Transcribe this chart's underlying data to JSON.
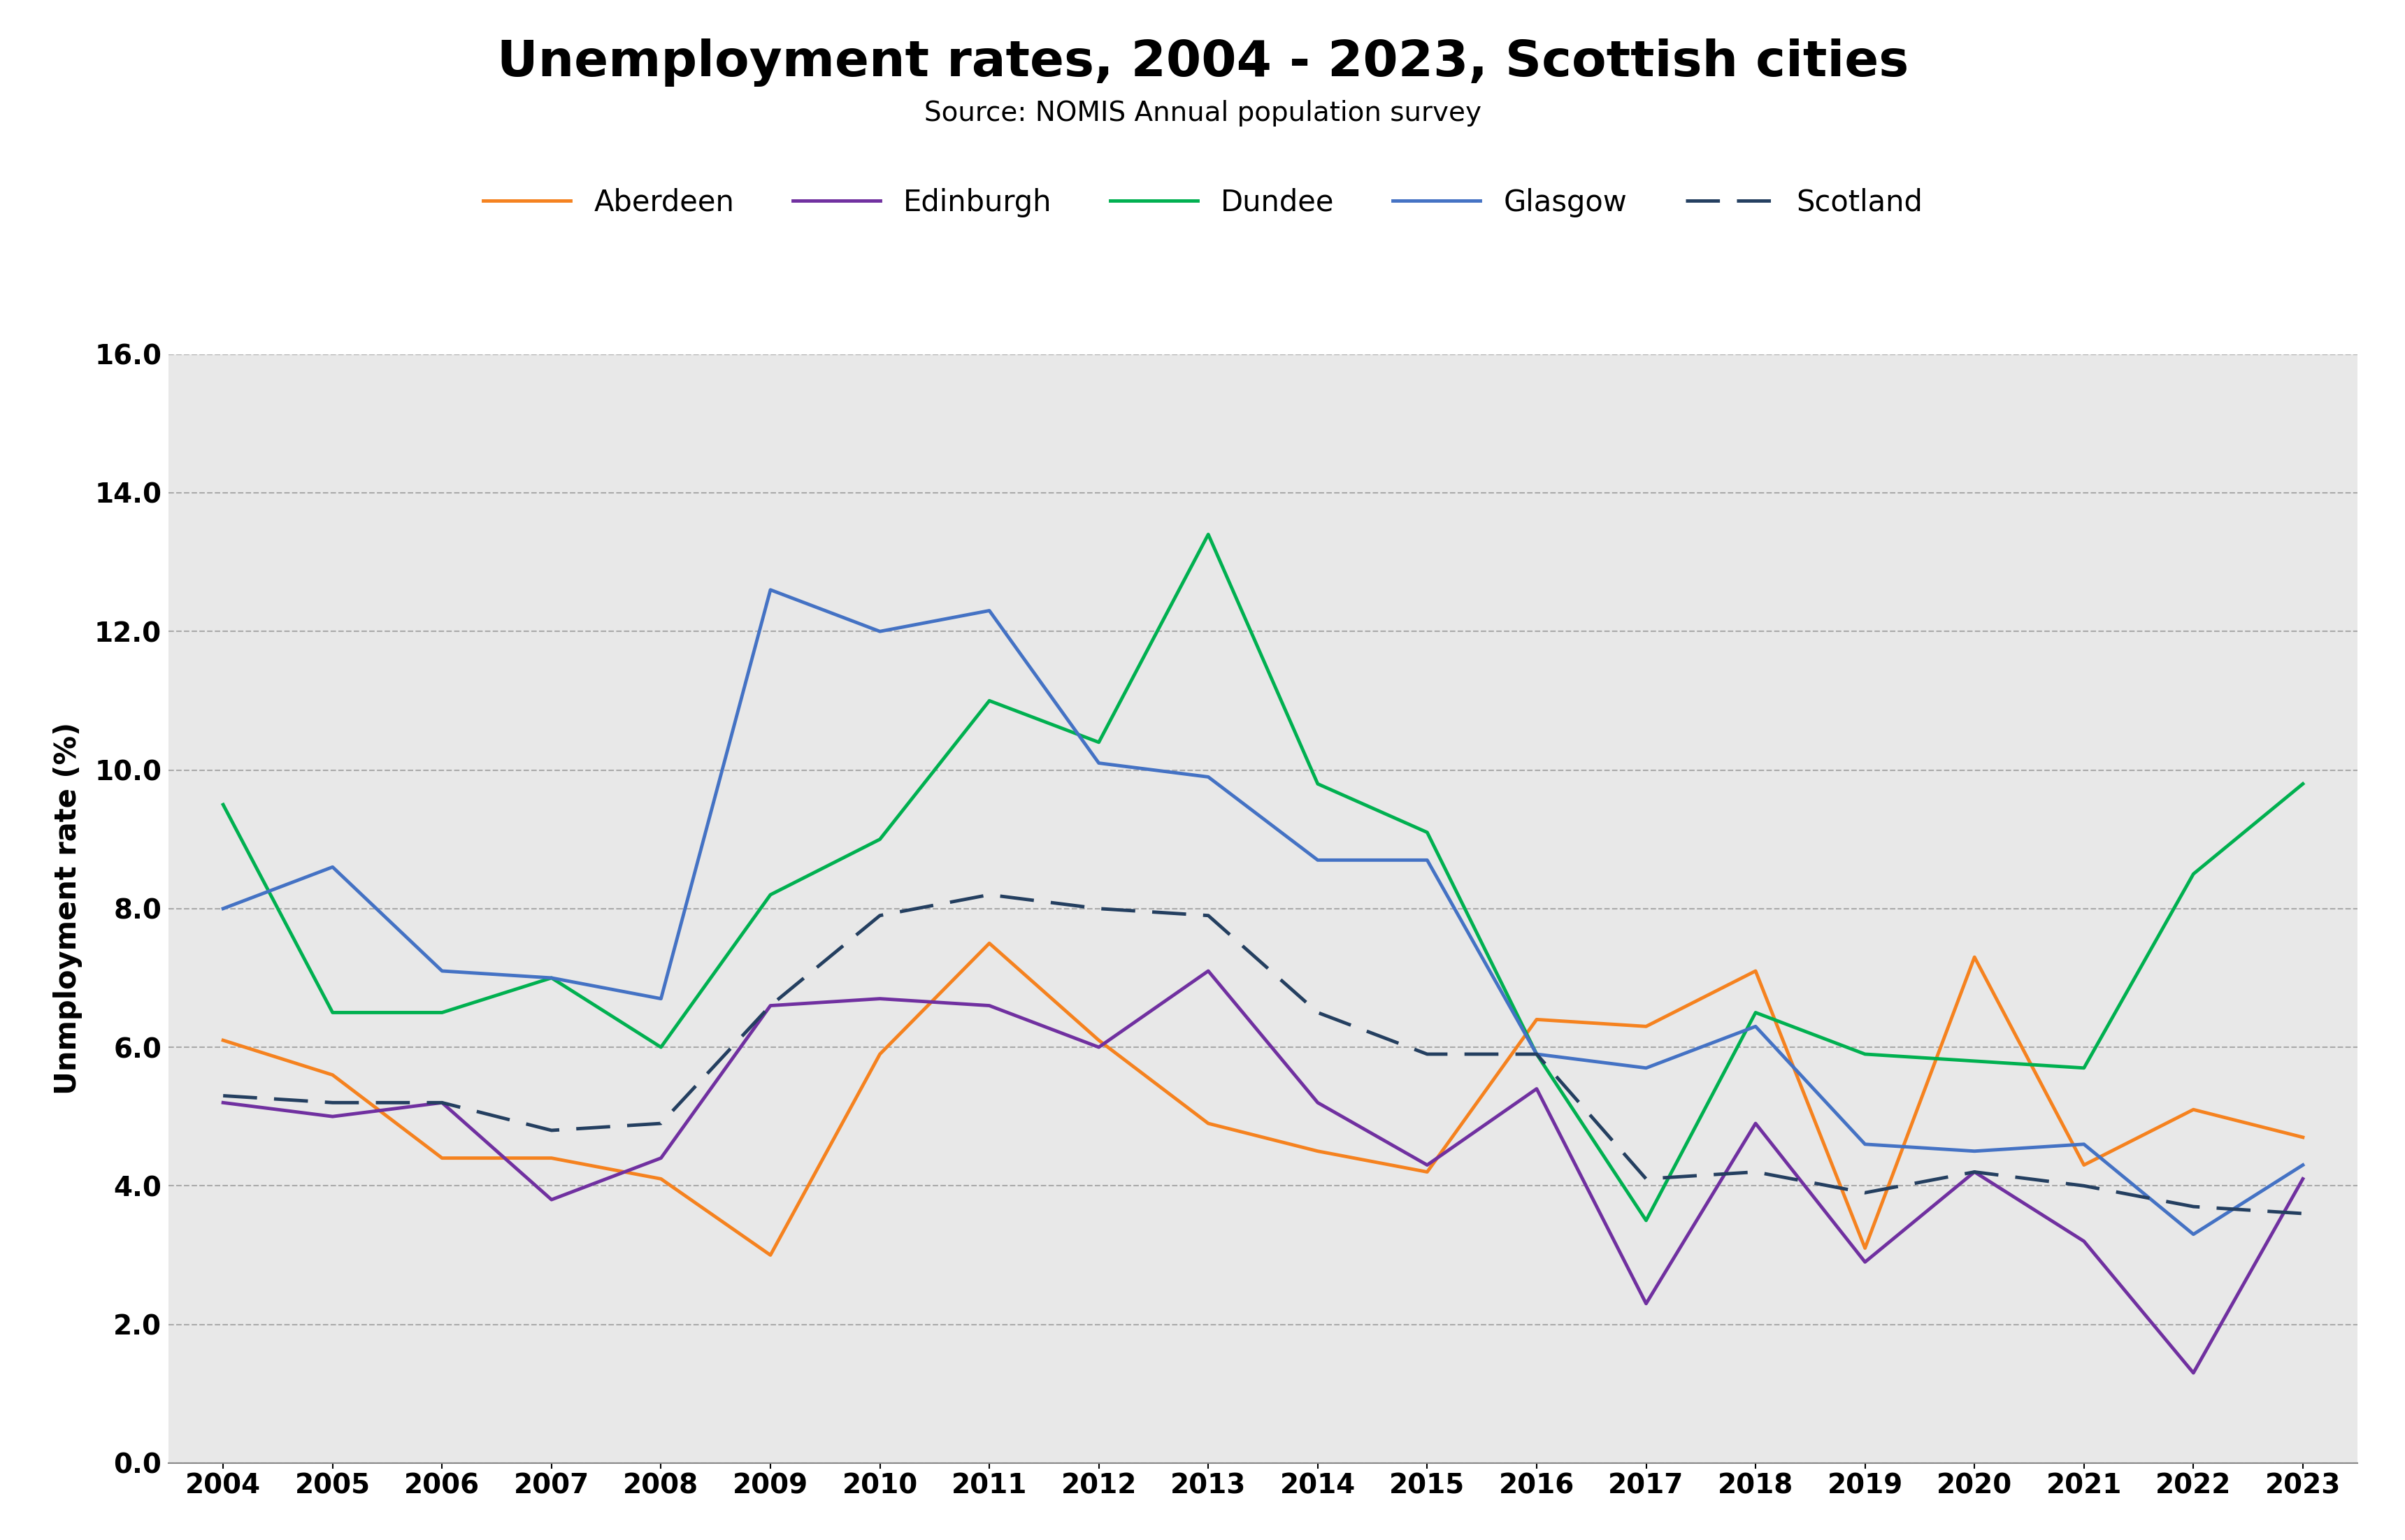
{
  "title": "Unemployment rates, 2004 - 2023, Scottish cities",
  "subtitle": "Source: NOMIS Annual population survey",
  "ylabel": "Unmployment rate (%)",
  "years": [
    2004,
    2005,
    2006,
    2007,
    2008,
    2009,
    2010,
    2011,
    2012,
    2013,
    2014,
    2015,
    2016,
    2017,
    2018,
    2019,
    2020,
    2021,
    2022,
    2023
  ],
  "Aberdeen": [
    6.1,
    5.6,
    4.4,
    4.4,
    4.1,
    3.0,
    5.9,
    7.5,
    6.1,
    4.9,
    4.5,
    4.2,
    6.4,
    6.3,
    7.1,
    3.1,
    7.3,
    4.3,
    5.1,
    4.7
  ],
  "Edinburgh": [
    5.2,
    5.0,
    5.2,
    3.8,
    4.4,
    6.6,
    6.7,
    6.6,
    6.0,
    7.1,
    5.2,
    4.3,
    5.4,
    2.3,
    4.9,
    2.9,
    4.2,
    3.2,
    1.3,
    4.1
  ],
  "Dundee": [
    9.5,
    6.5,
    6.5,
    7.0,
    6.0,
    8.2,
    9.0,
    11.0,
    10.4,
    13.4,
    9.8,
    9.1,
    5.9,
    3.5,
    6.5,
    5.9,
    5.8,
    5.7,
    8.5,
    9.8
  ],
  "Glasgow": [
    8.0,
    8.6,
    7.1,
    7.0,
    6.7,
    12.6,
    12.0,
    12.3,
    10.1,
    9.9,
    8.7,
    8.7,
    5.9,
    5.7,
    6.3,
    4.6,
    4.5,
    4.6,
    3.3,
    4.3
  ],
  "Scotland": [
    5.3,
    5.2,
    5.2,
    4.8,
    4.9,
    6.6,
    7.9,
    8.2,
    8.0,
    7.9,
    6.5,
    5.9,
    5.9,
    4.1,
    4.2,
    3.9,
    4.2,
    4.0,
    3.7,
    3.6
  ],
  "colors": {
    "Aberdeen": "#F5821F",
    "Edinburgh": "#7030A0",
    "Dundee": "#00B050",
    "Glasgow": "#4472C4",
    "Scotland": "#243F60"
  },
  "ylim": [
    0.0,
    16.0
  ],
  "yticks": [
    0.0,
    2.0,
    4.0,
    6.0,
    8.0,
    10.0,
    12.0,
    14.0,
    16.0
  ],
  "background_color": "#E8E8E8",
  "title_fontsize": 52,
  "subtitle_fontsize": 28,
  "legend_fontsize": 30,
  "axis_label_fontsize": 30,
  "tick_fontsize": 28
}
